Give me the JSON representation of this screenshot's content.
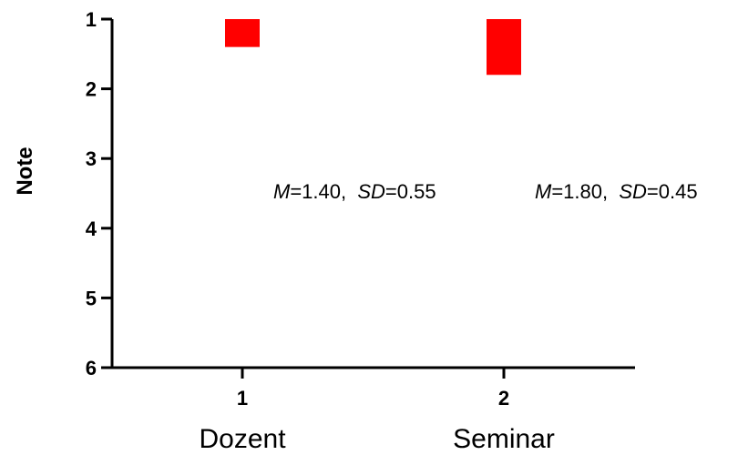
{
  "chart_data": {
    "type": "bar",
    "title": "",
    "ylabel": "Note",
    "ylim": [
      1,
      6
    ],
    "y_inverted": true,
    "y_ticks": [
      "1",
      "2",
      "3",
      "4",
      "5",
      "6"
    ],
    "x_ticks": [
      "1",
      "2"
    ],
    "categories": [
      "Dozent",
      "Seminar"
    ],
    "values": [
      1.4,
      1.8
    ],
    "bar_color": "#ff0000",
    "grid": false,
    "annotations": [
      {
        "m_label": "M",
        "m_value": "=1.40,",
        "sd_label": "SD",
        "sd_value": "=0.55"
      },
      {
        "m_label": "M",
        "m_value": "=1.80,",
        "sd_label": "SD",
        "sd_value": "=0.45"
      }
    ]
  }
}
